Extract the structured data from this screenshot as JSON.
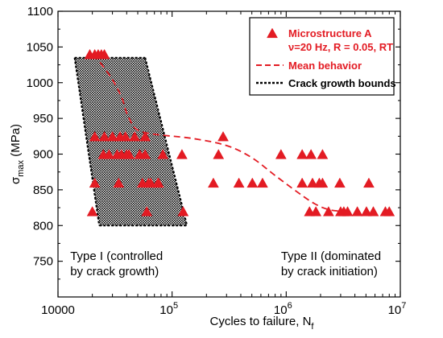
{
  "chart_data": {
    "type": "scatter",
    "xscale": "log",
    "xlim": [
      10000,
      10000000
    ],
    "ylim": [
      700,
      1100
    ],
    "grid": false,
    "xlabel": "Cycles to failure,",
    "xlabel_symbol": "N",
    "xlabel_sub": "f",
    "ylabel_symbol": "σ",
    "ylabel_sub": "max",
    "ylabel_unit": "(MPa)",
    "xticks": [
      {
        "value": 10000,
        "base": "10000",
        "exp": ""
      },
      {
        "value": 100000,
        "base": "10",
        "exp": "5"
      },
      {
        "value": 1000000,
        "base": "10",
        "exp": "6"
      },
      {
        "value": 10000000,
        "base": "10",
        "exp": "7"
      }
    ],
    "yticks": [
      750,
      800,
      850,
      900,
      950,
      1000,
      1050,
      1100
    ],
    "legend": {
      "position": "top-right",
      "entries": [
        {
          "label": "Microstructure A",
          "sublabel": "ν=20 Hz, R = 0.05, RT",
          "style": "triangle",
          "color": "#e31b23"
        },
        {
          "label": "Mean behavior",
          "style": "dashed",
          "color": "#e31b23"
        },
        {
          "label": "Crack growth bounds",
          "style": "dotted",
          "color": "#000000"
        }
      ]
    },
    "series": [
      {
        "name": "Microstructure A",
        "color": "#e31b23",
        "marker": "triangle",
        "points": [
          [
            19000,
            1040
          ],
          [
            21000,
            1040
          ],
          [
            22500,
            1040
          ],
          [
            24000,
            1040
          ],
          [
            25500,
            1040
          ],
          [
            21000,
            925
          ],
          [
            25500,
            925
          ],
          [
            30000,
            925
          ],
          [
            35000,
            925
          ],
          [
            39000,
            925
          ],
          [
            47000,
            925
          ],
          [
            58000,
            925
          ],
          [
            280000,
            925
          ],
          [
            25000,
            900
          ],
          [
            28000,
            900
          ],
          [
            33000,
            900
          ],
          [
            36000,
            900
          ],
          [
            40000,
            900
          ],
          [
            42000,
            900
          ],
          [
            52000,
            900
          ],
          [
            58000,
            900
          ],
          [
            83000,
            900
          ],
          [
            122000,
            900
          ],
          [
            255000,
            900
          ],
          [
            900000,
            900
          ],
          [
            1380000,
            900
          ],
          [
            1650000,
            900
          ],
          [
            2080000,
            900
          ],
          [
            21000,
            860
          ],
          [
            34000,
            860
          ],
          [
            55000,
            860
          ],
          [
            62000,
            860
          ],
          [
            65000,
            860
          ],
          [
            75000,
            860
          ],
          [
            76000,
            860
          ],
          [
            230000,
            860
          ],
          [
            385000,
            860
          ],
          [
            505000,
            860
          ],
          [
            620000,
            860
          ],
          [
            1380000,
            860
          ],
          [
            1700000,
            860
          ],
          [
            1950000,
            860
          ],
          [
            2080000,
            860
          ],
          [
            2950000,
            860
          ],
          [
            5300000,
            860
          ],
          [
            20000,
            820
          ],
          [
            60000,
            820
          ],
          [
            125000,
            820
          ],
          [
            1600000,
            820
          ],
          [
            1820000,
            820
          ],
          [
            2350000,
            820
          ],
          [
            3000000,
            820
          ],
          [
            3200000,
            820
          ],
          [
            3450000,
            820
          ],
          [
            4200000,
            820
          ],
          [
            5050000,
            820
          ],
          [
            5800000,
            820
          ],
          [
            7400000,
            820
          ],
          [
            8000000,
            820
          ]
        ]
      }
    ],
    "mean_behavior": {
      "name": "Mean behavior",
      "color": "#e31b23",
      "points": [
        [
          20500,
          1040
        ],
        [
          29000,
          1008
        ],
        [
          36000,
          980
        ],
        [
          42000,
          950
        ],
        [
          55000,
          931
        ],
        [
          150000,
          922
        ],
        [
          300000,
          912
        ],
        [
          500000,
          895
        ],
        [
          800000,
          870
        ],
        [
          1300000,
          845
        ],
        [
          1800000,
          830
        ],
        [
          2400000,
          822
        ],
        [
          3200000,
          820
        ]
      ]
    },
    "crack_growth_bounds": {
      "name": "Crack growth bounds",
      "color": "#000000",
      "left": [
        [
          14000,
          1035
        ],
        [
          23000,
          800
        ]
      ],
      "right": [
        [
          58000,
          1035
        ],
        [
          135000,
          800
        ]
      ]
    },
    "annotations": [
      {
        "lines": [
          "Type I (controlled",
          "by crack growth)"
        ],
        "x": 12800,
        "y": 752
      },
      {
        "lines": [
          "Type II (dominated",
          "by crack initiation)"
        ],
        "x": 900000,
        "y": 752
      }
    ]
  }
}
